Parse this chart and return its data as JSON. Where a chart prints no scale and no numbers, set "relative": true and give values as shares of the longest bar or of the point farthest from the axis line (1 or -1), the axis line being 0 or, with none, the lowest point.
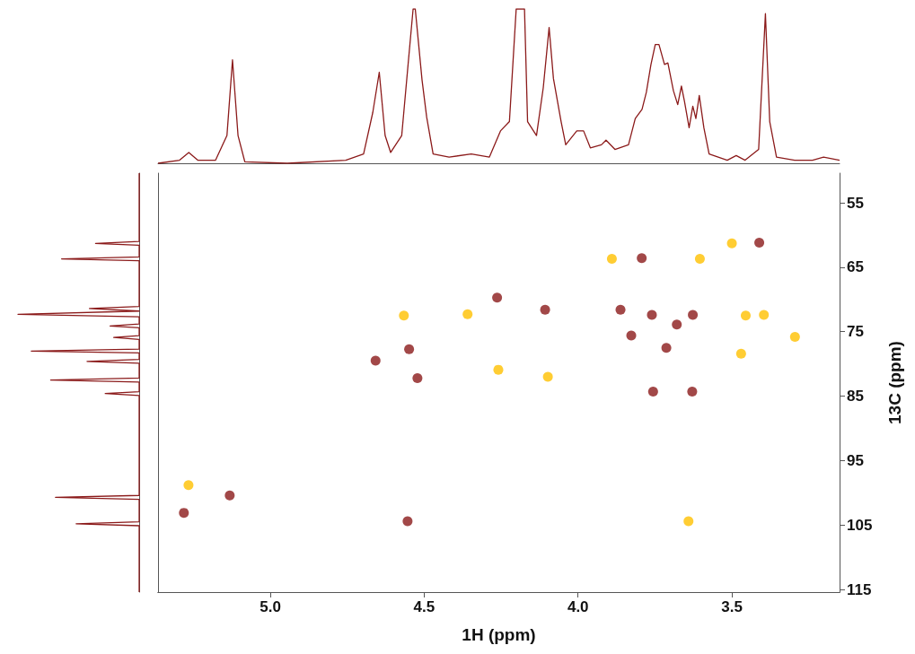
{
  "chart_data": [
    {
      "type": "line",
      "relative": true,
      "tick_labels": false,
      "xlim": [
        5.365,
        3.15
      ],
      "color": "#8b1a1a",
      "marker": "none",
      "x": [
        5.365,
        5.295,
        5.265,
        5.236,
        5.178,
        5.141,
        5.123,
        5.105,
        5.083,
        4.945,
        4.755,
        4.697,
        4.667,
        4.646,
        4.627,
        4.609,
        4.573,
        4.551,
        4.536,
        4.529,
        4.507,
        4.492,
        4.471,
        4.419,
        4.347,
        4.288,
        4.252,
        4.223,
        4.201,
        4.174,
        4.164,
        4.135,
        4.113,
        4.094,
        4.08,
        4.055,
        4.04,
        4.004,
        3.982,
        3.96,
        3.924,
        3.909,
        3.88,
        3.836,
        3.814,
        3.792,
        3.778,
        3.763,
        3.749,
        3.737,
        3.719,
        3.708,
        3.69,
        3.676,
        3.664,
        3.654,
        3.639,
        3.627,
        3.617,
        3.606,
        3.591,
        3.574,
        3.515,
        3.486,
        3.457,
        3.413,
        3.391,
        3.377,
        3.355,
        3.296,
        3.238,
        3.202,
        3.15
      ],
      "values": [
        0,
        0.02,
        0.07,
        0.02,
        0.02,
        0.18,
        0.67,
        0.18,
        0.01,
        0,
        0.02,
        0.06,
        0.33,
        0.59,
        0.18,
        0.07,
        0.18,
        0.67,
        1,
        1,
        0.54,
        0.3,
        0.06,
        0.04,
        0.06,
        0.04,
        0.21,
        0.27,
        1,
        1,
        0.27,
        0.18,
        0.49,
        0.88,
        0.55,
        0.27,
        0.12,
        0.21,
        0.21,
        0.1,
        0.12,
        0.15,
        0.09,
        0.12,
        0.29,
        0.35,
        0.46,
        0.64,
        0.77,
        0.77,
        0.64,
        0.65,
        0.47,
        0.38,
        0.5,
        0.4,
        0.23,
        0.37,
        0.29,
        0.44,
        0.23,
        0.06,
        0.02,
        0.05,
        0.02,
        0.09,
        0.97,
        0.27,
        0.04,
        0.02,
        0.02,
        0.04,
        0.02
      ]
    },
    {
      "type": "line",
      "relative": true,
      "tick_labels": false,
      "orientation": "horizontal",
      "ylim": [
        115.4,
        50.4
      ],
      "yticks": [
        55,
        65,
        75,
        85,
        95,
        105,
        115
      ],
      "color": "#8b1a1a",
      "marker": "none",
      "x": [
        50.4,
        61,
        61.3,
        61.6,
        63.4,
        63.7,
        64,
        71.1,
        71.4,
        71.8,
        72.3,
        72.7,
        73.8,
        74.1,
        74.4,
        75.6,
        75.9,
        76.2,
        77.7,
        78,
        78.3,
        79.3,
        79.6,
        79.9,
        82.2,
        82.5,
        82.8,
        84.3,
        84.6,
        84.9,
        100.4,
        100.7,
        101,
        104.5,
        104.8,
        105.1,
        115.4
      ],
      "values": [
        0,
        0,
        -0.36,
        0,
        0,
        -0.64,
        0,
        0,
        -0.41,
        0,
        -1,
        0,
        0,
        -0.24,
        0,
        0,
        -0.21,
        0,
        0,
        -0.89,
        0,
        0,
        -0.43,
        0,
        0,
        -0.73,
        0,
        0,
        -0.28,
        0,
        0,
        -0.69,
        0,
        0,
        -0.52,
        0,
        0
      ]
    },
    {
      "type": "scatter",
      "xlabel": "1H (ppm)",
      "ylabel": "13C (ppm)",
      "marker": "circle",
      "xlim": [
        5.365,
        3.15
      ],
      "xticks": [
        {
          "value": 5,
          "label": "5.0"
        },
        {
          "value": 4.5,
          "label": "4.5"
        },
        {
          "value": 4,
          "label": "4.0"
        },
        {
          "value": 3.5,
          "label": "3.5"
        }
      ],
      "ylim": [
        115.4,
        50.4
      ],
      "yticks": [
        55,
        65,
        75,
        85,
        95,
        105,
        115
      ],
      "series": [
        {
          "color": "#8b1a1a",
          "x": [
            5.132,
            5.281,
            4.658,
            4.549,
            4.522,
            4.554,
            4.263,
            4.107,
            3.862,
            3.793,
            3.76,
            3.627,
            3.679,
            3.827,
            3.713,
            3.756,
            3.629,
            3.411
          ],
          "values": [
            100.4,
            103.1,
            79.5,
            77.7,
            82.2,
            104.4,
            69.7,
            71.6,
            71.6,
            63.6,
            72.4,
            72.4,
            73.9,
            75.6,
            77.5,
            84.3,
            84.3,
            61.2
          ]
        },
        {
          "color": "#ffc000",
          "x": [
            5.266,
            4.566,
            4.359,
            4.259,
            3.89,
            3.604,
            3.5,
            3.455,
            3.396,
            3.295,
            3.47,
            4.098,
            3.641
          ],
          "values": [
            98.8,
            72.5,
            72.3,
            80.9,
            63.7,
            63.7,
            61.3,
            72.5,
            72.4,
            75.8,
            78.4,
            82.0,
            104.4
          ]
        }
      ]
    }
  ]
}
